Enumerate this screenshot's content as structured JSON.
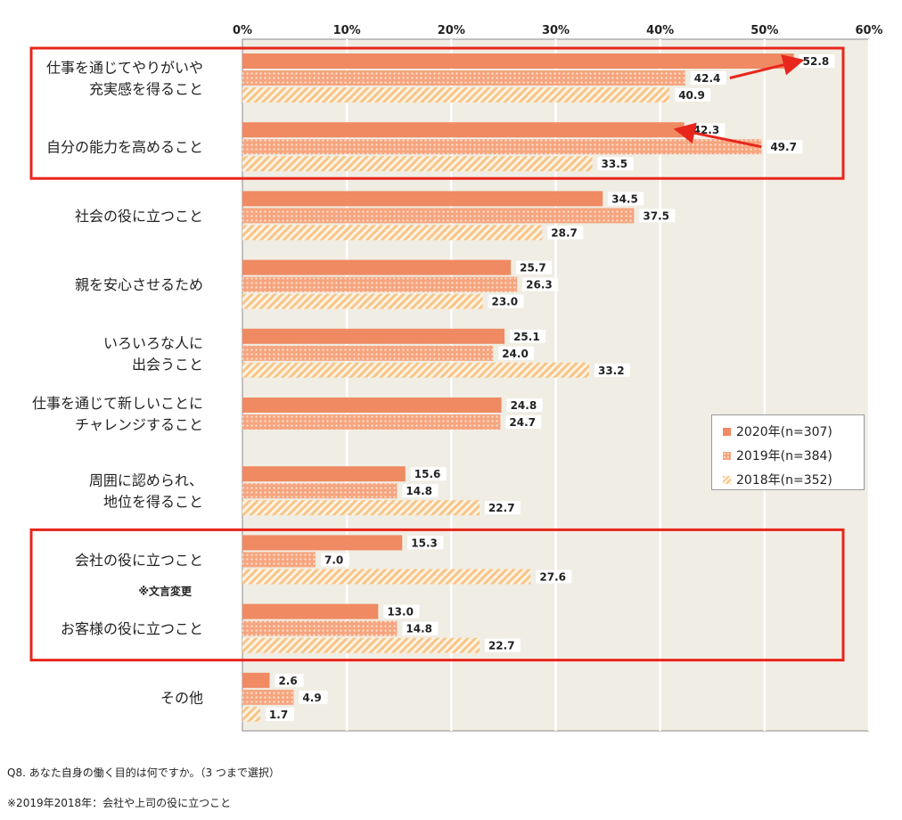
{
  "chart_data": {
    "type": "bar",
    "orientation": "horizontal",
    "title": "",
    "xlabel": "",
    "ylabel": "",
    "xlim": [
      0,
      60
    ],
    "x_ticks": [
      "0%",
      "10%",
      "20%",
      "30%",
      "40%",
      "50%",
      "60%"
    ],
    "grid": true,
    "categories": [
      [
        "仕事を通じてやりがいや",
        "充実感を得ること"
      ],
      [
        "自分の能力を高めること"
      ],
      [
        "社会の役に立つこと"
      ],
      [
        "親を安心させるため"
      ],
      [
        "いろいろな人に",
        "出会うこと"
      ],
      [
        "仕事を通じて新しいことに",
        "チャレンジすること"
      ],
      [
        "周囲に認められ、",
        "地位を得ること"
      ],
      [
        "会社の役に立つこと"
      ],
      [
        "お客様の役に立つこと"
      ],
      [
        "その他"
      ]
    ],
    "series": [
      {
        "name": "2020年(n=307)",
        "values": [
          52.8,
          42.3,
          34.5,
          25.7,
          25.1,
          24.8,
          15.6,
          15.3,
          13.0,
          2.6
        ],
        "labels": [
          "52.8",
          "42.3",
          "34.5",
          "25.7",
          "25.1",
          "24.8",
          "15.6",
          "15.3",
          "13.0",
          "2.6"
        ],
        "color": "#ef8a62"
      },
      {
        "name": "2019年(n=384)",
        "values": [
          42.4,
          49.7,
          37.5,
          26.3,
          24.0,
          24.7,
          14.8,
          7.0,
          14.8,
          4.9
        ],
        "labels": [
          "42.4",
          "49.7",
          "37.5",
          "26.3",
          "24.0",
          "24.7",
          "14.8",
          "7.0",
          "14.8",
          "4.9"
        ],
        "color": "#f6a57f"
      },
      {
        "name": "2018年(n=352)",
        "values": [
          40.9,
          33.5,
          28.7,
          23.0,
          33.2,
          null,
          22.7,
          27.6,
          22.7,
          1.7
        ],
        "labels": [
          "40.9",
          "33.5",
          "28.7",
          "23.0",
          "33.2",
          null,
          "22.7",
          "27.6",
          "22.7",
          "1.7"
        ],
        "color": "#f6c58a"
      }
    ],
    "category_note": {
      "index": 7,
      "text": "※文言変更"
    },
    "legend": [
      "2020年(n=307)",
      "2019年(n=384)",
      "2018年(n=352)"
    ],
    "legend_position": "right",
    "highlight_groups": [
      [
        0,
        1
      ],
      [
        7,
        8
      ]
    ],
    "arrows": [
      {
        "from_value": 42.4,
        "from_series": 1,
        "to_value": 52.8,
        "to_series": 0,
        "category": 0
      },
      {
        "from_value": 49.7,
        "from_series": 1,
        "to_value": 42.3,
        "to_series": 0,
        "category": 1
      }
    ],
    "colors": {
      "plot_bg": "#f0ede4",
      "grid": "#ffffff",
      "highlight": "#e8261c",
      "arrow": "#e8261c"
    }
  },
  "notes": {
    "question": "Q8. あなた自身の働く目的は何ですか。（3 つまで選択）",
    "footnote": "※2019年2018年：会社や上司の役に立つこと"
  }
}
